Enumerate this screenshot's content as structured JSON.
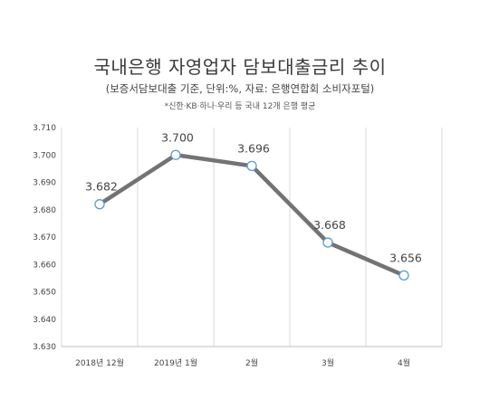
{
  "chart_data": {
    "type": "line",
    "title": "국내은행 자영업자 담보대출금리 추이",
    "subtitle": "(보증서담보대출 기준, 단위:%, 자료: 은행연합회 소비자포털)",
    "note": "*신한·KB·하나·우리 등 국내 12개 은행 평균",
    "categories": [
      "2018년 12월",
      "2019년 1월",
      "2월",
      "3월",
      "4월"
    ],
    "series": [
      {
        "values": [
          3.682,
          3.7,
          3.696,
          3.668,
          3.656
        ],
        "labels": [
          "3.682",
          "3.700",
          "3.696",
          "3.668",
          "3.656"
        ]
      }
    ],
    "y_ticks": [
      "3.710",
      "3.700",
      "3.690",
      "3.680",
      "3.670",
      "3.660",
      "3.650",
      "3.640",
      "3.630"
    ],
    "ylim": [
      3.63,
      3.71
    ],
    "grid": "vertical",
    "colors": {
      "line": "#737373",
      "marker_fill": "#ffffff",
      "marker_stroke": "#5b9bd5",
      "grid": "#d9d9d9"
    }
  }
}
